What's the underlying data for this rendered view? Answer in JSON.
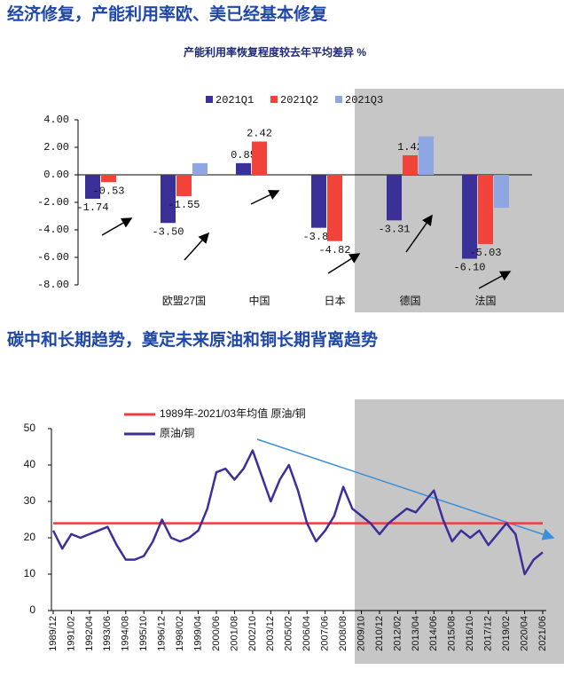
{
  "headings": [
    "经济修复，产能利用率欧、美已经基本修复",
    "碳中和长期趋势，奠定未来原油和铜长期背离趋势"
  ],
  "chart_data": [
    {
      "type": "bar",
      "title": "产能利用率恢复程度较去年平均差异 %",
      "categories": [
        null,
        "欧盟27国",
        "中国",
        "日本",
        "德国",
        "法国"
      ],
      "series": [
        {
          "name": "2021Q1",
          "color": "#3b2f98",
          "values": [
            -1.74,
            -3.5,
            0.85,
            -3.85,
            -3.31,
            -6.1
          ],
          "value_labels": [
            "-1.74",
            "-3.50",
            "0.85",
            "-3.85",
            "-3.31",
            "-6.10"
          ]
        },
        {
          "name": "2021Q2",
          "color": "#f2433b",
          "values": [
            -0.53,
            -1.55,
            2.42,
            -4.82,
            1.42,
            -5.03
          ],
          "value_labels": [
            "-0.53",
            "-1.55",
            "2.42",
            "-4.82",
            "1.42",
            "-5.03"
          ]
        },
        {
          "name": "2021Q3",
          "color": "#8ea7e2",
          "values": [
            null,
            0.85,
            null,
            null,
            2.8,
            -2.4
          ]
        }
      ],
      "ylim": [
        -8,
        4
      ],
      "yticks": [
        {
          "value": 4,
          "label": "4.00"
        },
        {
          "value": 2,
          "label": "2.00"
        },
        {
          "value": 0,
          "label": "0.00"
        },
        {
          "value": -2,
          "label": "-2.00"
        },
        {
          "value": -4,
          "label": "-4.00"
        },
        {
          "value": -6,
          "label": "-6.00"
        },
        {
          "value": -8,
          "label": "-8.00"
        }
      ],
      "legend": "top"
    },
    {
      "type": "line",
      "x": [
        "1989/12",
        "1990/07",
        "1991/02",
        "1991/09",
        "1992/04",
        "1992/11",
        "1993/06",
        "1994/01",
        "1994/08",
        "1995/03",
        "1995/10",
        "1996/05",
        "1996/12",
        "1997/07",
        "1998/02",
        "1998/09",
        "1999/04",
        "1999/11",
        "2000/06",
        "2001/01",
        "2001/08",
        "2002/03",
        "2002/10",
        "2003/05",
        "2003/12",
        "2004/07",
        "2005/02",
        "2005/09",
        "2006/04",
        "2006/11",
        "2007/06",
        "2008/01",
        "2008/08",
        "2009/03",
        "2009/10",
        "2010/05",
        "2010/12",
        "2011/07",
        "2012/02",
        "2012/09",
        "2013/04",
        "2013/11",
        "2014/06",
        "2015/01",
        "2015/08",
        "2016/03",
        "2016/10",
        "2017/05",
        "2017/12",
        "2018/07",
        "2019/02",
        "2019/09",
        "2020/04",
        "2020/11",
        "2021/06"
      ],
      "series": [
        {
          "name": "1989年-2021/03年均值 原油/铜",
          "color": "#f03c3c",
          "values": [
            24,
            24,
            24,
            24,
            24,
            24,
            24,
            24,
            24,
            24,
            24,
            24,
            24,
            24,
            24,
            24,
            24,
            24,
            24,
            24,
            24,
            24,
            24,
            24,
            24,
            24,
            24,
            24,
            24,
            24,
            24,
            24,
            24,
            24,
            24,
            24,
            24,
            24,
            24,
            24,
            24,
            24,
            24,
            24,
            24,
            24,
            24,
            24,
            24,
            24,
            24,
            24,
            24,
            24,
            24
          ]
        },
        {
          "name": "原油/铜",
          "color": "#3d2f99",
          "values": [
            22,
            17,
            21,
            20,
            21,
            22,
            23,
            18,
            14,
            14,
            15,
            19,
            25,
            20,
            19,
            20,
            22,
            28,
            38,
            39,
            36,
            39,
            44,
            37,
            30,
            36,
            40,
            33,
            24,
            19,
            22,
            26,
            34,
            28,
            26,
            24,
            21,
            24,
            26,
            28,
            27,
            30,
            33,
            25,
            19,
            22,
            20,
            22,
            18,
            21,
            24,
            21,
            10,
            14,
            16
          ]
        }
      ],
      "ylim": [
        0,
        50
      ],
      "yticks": [
        0,
        10,
        20,
        30,
        40,
        50
      ],
      "xticks": [
        "1989/12",
        "1991/02",
        "1992/04",
        "1993/06",
        "1994/08",
        "1995/10",
        "1996/12",
        "1998/02",
        "1999/04",
        "2000/06",
        "2001/08",
        "2002/10",
        "2003/12",
        "2005/02",
        "2006/04",
        "2007/06",
        "2008/08",
        "2009/10",
        "2010/12",
        "2012/02",
        "2013/04",
        "2014/06",
        "2015/08",
        "2016/10",
        "2017/12",
        "2019/02",
        "2020/04",
        "2021/06"
      ],
      "legend": "top-left"
    }
  ]
}
